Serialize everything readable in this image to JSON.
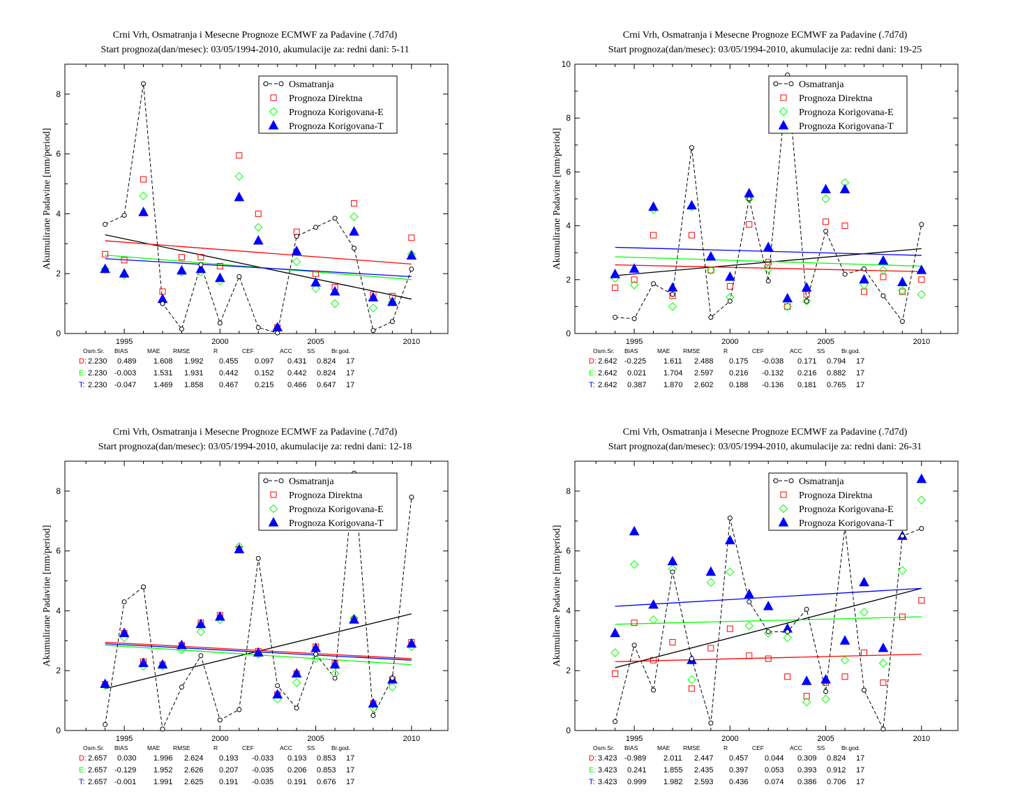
{
  "axis_labels": {
    "ylabel": "Akumulirane Padavine [mm/period]"
  },
  "legend_labels": [
    "Osmatranja",
    "Prognoza Direktna",
    "Prognoza Korigovana-E",
    "Prognoza Korigovana-T"
  ],
  "colors": {
    "obs": "#000000",
    "direct": "#ff0000",
    "corr_e": "#00ff00",
    "corr_t": "#0000ff"
  },
  "stats_headers": [
    "Osm.Sr.",
    "BIAS",
    "MAE",
    "RMSE",
    "R",
    "CEF",
    "ACC",
    "SS",
    "Br.god."
  ],
  "chart_data": [
    {
      "type": "scatter",
      "title": "Crni Vrh, Osmatranja i Mesecne Prognoze ECMWF za Padavine (.7d7d)",
      "subtitle": "Start prognoza(dan/mesec): 03/05/1994-2010, akumulacije za: redni dani: 5-11",
      "ylabel": "Akumulirane Padavine [mm/period]",
      "xlim": [
        1991.9,
        2011.9
      ],
      "ylim": [
        0,
        9
      ],
      "y_ticks": [
        0,
        2,
        4,
        6,
        8
      ],
      "x_ticks": [
        1995,
        2000,
        2005,
        2010
      ],
      "x": [
        1994,
        1995,
        1996,
        1997,
        1998,
        1999,
        2000,
        2001,
        2002,
        2003,
        2004,
        2005,
        2006,
        2007,
        2008,
        2009,
        2010
      ],
      "series": [
        {
          "name": "Osmatranja",
          "values": [
            3.65,
            3.95,
            8.35,
            1.0,
            0.15,
            2.3,
            0.35,
            1.9,
            0.2,
            0.02,
            3.25,
            3.55,
            3.85,
            2.85,
            0.1,
            0.4,
            2.15
          ]
        },
        {
          "name": "Prognoza Direktna",
          "values": [
            2.65,
            2.45,
            5.15,
            1.4,
            2.55,
            2.55,
            2.25,
            5.95,
            4.0,
            0.2,
            3.4,
            2.0,
            1.55,
            4.35,
            1.3,
            1.25,
            3.2
          ]
        },
        {
          "name": "Prognoza Korigovana-E",
          "values": [
            2.15,
            1.95,
            4.6,
            1.05,
            2.05,
            2.05,
            1.75,
            5.25,
            3.55,
            0.15,
            2.4,
            1.5,
            1.0,
            3.9,
            0.85,
            1.05,
            2.65
          ]
        },
        {
          "name": "Prognoza Korigovana-T",
          "values": [
            2.15,
            2.0,
            4.05,
            1.15,
            2.1,
            2.15,
            1.85,
            4.55,
            3.1,
            0.2,
            2.75,
            1.7,
            1.4,
            3.4,
            1.2,
            1.05,
            2.6
          ]
        }
      ],
      "trends": [
        {
          "series": "Osmatranja",
          "y1994": 3.3,
          "y2010": 1.15
        },
        {
          "series": "Prognoza Direktna",
          "y1994": 3.1,
          "y2010": 2.32
        },
        {
          "series": "Prognoza Korigovana-E",
          "y1994": 2.62,
          "y2010": 1.8
        },
        {
          "series": "Prognoza Korigovana-T",
          "y1994": 2.5,
          "y2010": 1.9
        }
      ],
      "stats": [
        {
          "label": "D:",
          "values": [
            "2.230",
            "0.489",
            "1.608",
            "1.992",
            "0.455",
            "0.097",
            "0.431",
            "0.824",
            "17"
          ]
        },
        {
          "label": "E:",
          "values": [
            "2.230",
            "-0.003",
            "1.531",
            "1.931",
            "0.442",
            "0.152",
            "0.442",
            "0.824",
            "17"
          ]
        },
        {
          "label": "T:",
          "values": [
            "2.230",
            "-0.047",
            "1.469",
            "1.858",
            "0.467",
            "0.215",
            "0.466",
            "0.647",
            "17"
          ]
        }
      ]
    },
    {
      "type": "scatter",
      "title": "Crni Vrh, Osmatranja i Mesecne Prognoze ECMWF za Padavine (.7d7d)",
      "subtitle": "Start prognoza(dan/mesec): 03/05/1994-2010, akumulacije za: redni dani: 19-25",
      "ylabel": "Akumulirane Padavine [mm/period]",
      "xlim": [
        1991.9,
        2011.9
      ],
      "ylim": [
        0,
        10
      ],
      "y_ticks": [
        0,
        2,
        4,
        6,
        8,
        10
      ],
      "x_ticks": [
        1995,
        2000,
        2005,
        2010
      ],
      "x": [
        1994,
        1995,
        1996,
        1997,
        1998,
        1999,
        2000,
        2001,
        2002,
        2003,
        2004,
        2005,
        2006,
        2007,
        2008,
        2009,
        2010
      ],
      "series": [
        {
          "name": "Osmatranja",
          "values": [
            0.6,
            0.55,
            1.85,
            1.45,
            6.9,
            0.6,
            1.2,
            5.0,
            1.95,
            9.6,
            1.2,
            3.8,
            2.2,
            2.4,
            1.4,
            0.45,
            4.05
          ]
        },
        {
          "name": "Prognoza Direktna",
          "values": [
            1.7,
            2.0,
            3.65,
            1.4,
            3.65,
            2.35,
            1.75,
            4.05,
            2.65,
            1.0,
            1.45,
            4.15,
            4.0,
            1.55,
            2.1,
            1.55,
            2.0
          ]
        },
        {
          "name": "Prognoza Korigovana-E",
          "values": [
            2.05,
            1.8,
            4.6,
            1.0,
            4.7,
            2.35,
            1.35,
            5.0,
            2.4,
            1.0,
            1.2,
            5.0,
            5.6,
            1.8,
            2.35,
            1.6,
            1.45
          ]
        },
        {
          "name": "Prognoza Korigovana-T",
          "values": [
            2.2,
            2.4,
            4.7,
            1.7,
            4.75,
            2.85,
            2.1,
            5.2,
            3.2,
            1.3,
            1.7,
            5.35,
            5.35,
            2.0,
            2.7,
            1.9,
            2.35
          ]
        }
      ],
      "trends": [
        {
          "series": "Osmatranja",
          "y1994": 2.15,
          "y2010": 3.15
        },
        {
          "series": "Prognoza Direktna",
          "y1994": 2.55,
          "y2010": 2.3
        },
        {
          "series": "Prognoza Korigovana-E",
          "y1994": 2.85,
          "y2010": 2.5
        },
        {
          "series": "Prognoza Korigovana-T",
          "y1994": 3.2,
          "y2010": 2.9
        }
      ],
      "stats": [
        {
          "label": "D:",
          "values": [
            "2.642",
            "-0.225",
            "1.611",
            "2.488",
            "0.175",
            "-0.038",
            "0.171",
            "0.794",
            "17"
          ]
        },
        {
          "label": "E:",
          "values": [
            "2.642",
            "0.021",
            "1.704",
            "2.597",
            "0.216",
            "-0.132",
            "0.216",
            "0.882",
            "17"
          ]
        },
        {
          "label": "T:",
          "values": [
            "2.642",
            "0.387",
            "1.870",
            "2.602",
            "0.188",
            "-0.136",
            "0.181",
            "0.765",
            "17"
          ]
        }
      ]
    },
    {
      "type": "scatter",
      "title": "Crni Vrh, Osmatranja i Mesecne Prognoze ECMWF za Padavine (.7d7d)",
      "subtitle": "Start prognoza(dan/mesec): 03/05/1994-2010, akumulacije za: redni dani: 12-18",
      "ylabel": "Akumulirane Padavine [mm/period]",
      "xlim": [
        1991.9,
        2011.9
      ],
      "ylim": [
        0,
        9
      ],
      "y_ticks": [
        0,
        2,
        4,
        6,
        8
      ],
      "x_ticks": [
        1995,
        2000,
        2005,
        2010
      ],
      "x": [
        1994,
        1995,
        1996,
        1997,
        1998,
        1999,
        2000,
        2001,
        2002,
        2003,
        2004,
        2005,
        2006,
        2007,
        2008,
        2009,
        2010
      ],
      "series": [
        {
          "name": "Osmatranja",
          "values": [
            0.2,
            4.3,
            4.8,
            0.05,
            1.45,
            2.5,
            0.35,
            0.7,
            5.75,
            1.5,
            0.75,
            2.55,
            1.75,
            8.6,
            0.5,
            1.75,
            7.8
          ]
        },
        {
          "name": "Prognoza Direktna",
          "values": [
            1.55,
            3.25,
            2.3,
            2.2,
            2.85,
            3.6,
            3.85,
            6.05,
            2.65,
            1.2,
            1.9,
            2.8,
            2.25,
            3.7,
            0.9,
            1.7,
            2.95
          ]
        },
        {
          "name": "Prognoza Korigovana-E",
          "values": [
            1.5,
            3.1,
            2.15,
            2.15,
            2.7,
            3.3,
            3.7,
            6.15,
            2.55,
            1.05,
            1.6,
            2.4,
            1.9,
            3.75,
            0.75,
            1.45,
            2.8
          ]
        },
        {
          "name": "Prognoza Korigovana-T",
          "values": [
            1.55,
            3.25,
            2.25,
            2.2,
            2.85,
            3.55,
            3.8,
            6.05,
            2.6,
            1.2,
            1.9,
            2.75,
            2.2,
            3.7,
            0.9,
            1.7,
            2.9
          ]
        }
      ],
      "trends": [
        {
          "series": "Osmatranja",
          "y1994": 1.4,
          "y2010": 3.9
        },
        {
          "series": "Prognoza Direktna",
          "y1994": 2.95,
          "y2010": 2.4
        },
        {
          "series": "Prognoza Korigovana-E",
          "y1994": 2.85,
          "y2010": 2.2
        },
        {
          "series": "Prognoza Korigovana-T",
          "y1994": 2.9,
          "y2010": 2.35
        }
      ],
      "stats": [
        {
          "label": "D:",
          "values": [
            "2.657",
            "0.030",
            "1.996",
            "2.624",
            "0.193",
            "-0.033",
            "0.193",
            "0.853",
            "17"
          ]
        },
        {
          "label": "E:",
          "values": [
            "2.657",
            "-0.129",
            "1.952",
            "2.626",
            "0.207",
            "-0.035",
            "0.206",
            "0.853",
            "17"
          ]
        },
        {
          "label": "T:",
          "values": [
            "2.657",
            "-0.001",
            "1.991",
            "2.625",
            "0.191",
            "-0.035",
            "0.191",
            "0.676",
            "17"
          ]
        }
      ]
    },
    {
      "type": "scatter",
      "title": "Crni Vrh, Osmatranja i Mesecne Prognoze ECMWF za Padavine (.7d7d)",
      "subtitle": "Start prognoza(dan/mesec): 03/05/1994-2010, akumulacije za: redni dani: 26-31",
      "ylabel": "Akumulirane Padavine [mm/period]",
      "xlim": [
        1991.9,
        2011.9
      ],
      "ylim": [
        0,
        9
      ],
      "y_ticks": [
        0,
        2,
        4,
        6,
        8
      ],
      "x_ticks": [
        1995,
        2000,
        2005,
        2010
      ],
      "x": [
        1994,
        1995,
        1996,
        1997,
        1998,
        1999,
        2000,
        2001,
        2002,
        2003,
        2004,
        2005,
        2006,
        2007,
        2008,
        2009,
        2010
      ],
      "series": [
        {
          "name": "Osmatranja",
          "values": [
            0.3,
            2.85,
            1.35,
            5.3,
            2.4,
            0.25,
            7.1,
            4.3,
            3.3,
            3.3,
            4.05,
            1.3,
            6.8,
            1.35,
            0.05,
            6.5,
            6.75
          ]
        },
        {
          "name": "Prognoza Direktna",
          "values": [
            1.9,
            3.6,
            2.35,
            2.95,
            1.4,
            2.75,
            3.4,
            2.5,
            2.4,
            1.8,
            1.15,
            1.6,
            1.8,
            2.6,
            1.6,
            3.8,
            4.35
          ]
        },
        {
          "name": "Prognoza Korigovana-E",
          "values": [
            2.6,
            5.55,
            3.7,
            5.4,
            1.7,
            4.95,
            5.3,
            3.5,
            3.25,
            3.1,
            0.95,
            1.05,
            2.35,
            3.95,
            2.25,
            5.35,
            7.7
          ]
        },
        {
          "name": "Prognoza Korigovana-T",
          "values": [
            3.25,
            6.65,
            4.2,
            5.65,
            2.35,
            5.3,
            6.35,
            4.55,
            4.15,
            3.4,
            1.65,
            1.7,
            3.0,
            4.95,
            2.75,
            6.5,
            8.4
          ]
        }
      ],
      "trends": [
        {
          "series": "Osmatranja",
          "y1994": 2.1,
          "y2010": 4.75
        },
        {
          "series": "Prognoza Direktna",
          "y1994": 2.3,
          "y2010": 2.55
        },
        {
          "series": "Prognoza Korigovana-E",
          "y1994": 3.55,
          "y2010": 3.8
        },
        {
          "series": "Prognoza Korigovana-T",
          "y1994": 4.15,
          "y2010": 4.75
        }
      ],
      "stats": [
        {
          "label": "D:",
          "values": [
            "3.423",
            "-0.989",
            "2.011",
            "2.447",
            "0.457",
            "0.044",
            "0.309",
            "0.824",
            "17"
          ]
        },
        {
          "label": "E:",
          "values": [
            "3.423",
            "0.241",
            "1.855",
            "2.435",
            "0.397",
            "0.053",
            "0.393",
            "0.912",
            "17"
          ]
        },
        {
          "label": "T:",
          "values": [
            "3.423",
            "0.999",
            "1.982",
            "2.593",
            "0.436",
            "0.074",
            "0.386",
            "0.706",
            "17"
          ]
        }
      ]
    }
  ]
}
